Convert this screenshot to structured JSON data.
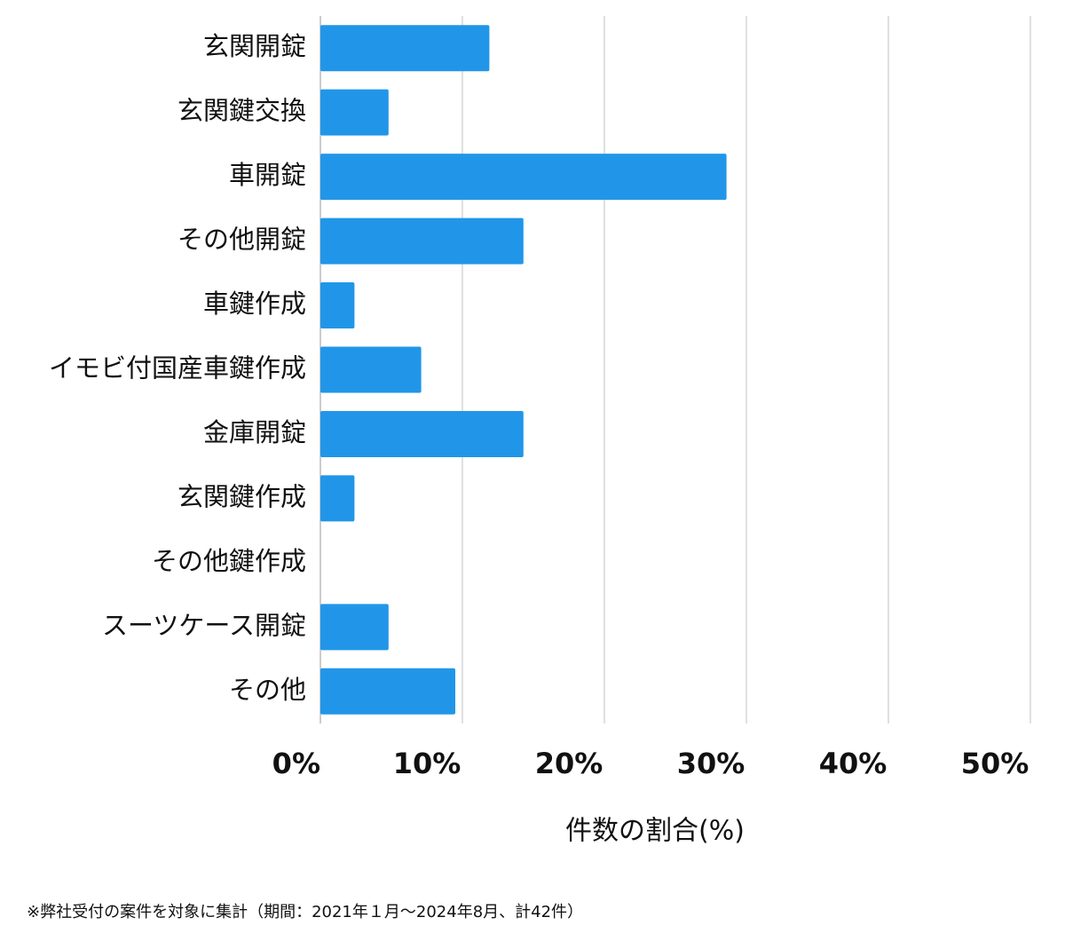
{
  "chart_data": {
    "type": "bar",
    "orientation": "horizontal",
    "categories": [
      "玄関開錠",
      "玄関鍵交換",
      "車開錠",
      "その他開錠",
      "車鍵作成",
      "イモビ付国産車鍵作成",
      "金庫開錠",
      "玄関鍵作成",
      "その他鍵作成",
      "スーツケース開錠",
      "その他"
    ],
    "values": [
      11.9,
      4.8,
      28.6,
      14.3,
      2.4,
      7.1,
      14.3,
      2.4,
      0,
      4.8,
      9.5
    ],
    "color": "#2196e8",
    "xlim": [
      0,
      50
    ],
    "xticks": [
      {
        "value": 0,
        "label": "0%"
      },
      {
        "value": 10,
        "label": "10%"
      },
      {
        "value": 20,
        "label": "20%"
      },
      {
        "value": 30,
        "label": "30%"
      },
      {
        "value": 40,
        "label": "40%"
      },
      {
        "value": 50,
        "label": "50%"
      }
    ],
    "x_label": "件数の割合(%)",
    "grid": true,
    "footnote": "※弊社受付の案件を対象に集計（期間：2021年１月〜2024年8月、計42件）"
  }
}
